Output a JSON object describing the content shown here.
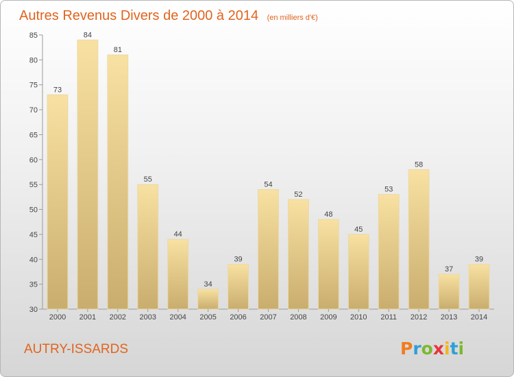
{
  "page": {
    "commune": "AUTRY-ISSARDS",
    "logo_letters": [
      "P",
      "r",
      "o",
      "x",
      "i",
      "t",
      "i"
    ],
    "logo_colors": [
      "#f07d1e",
      "#2f9fd8",
      "#7cb82f",
      "#e8333c",
      "#f3b51c",
      "#2f9fd8",
      "#7cb82f"
    ]
  },
  "chart_data": {
    "type": "bar",
    "title": "Autres Revenus Divers de 2000 à 2014",
    "unit_note": "(en milliers d'€)",
    "categories": [
      "2000",
      "2001",
      "2002",
      "2003",
      "2004",
      "2005",
      "2006",
      "2007",
      "2008",
      "2009",
      "2010",
      "2011",
      "2012",
      "2013",
      "2014"
    ],
    "values": [
      73,
      84,
      81,
      55,
      44,
      34,
      39,
      54,
      52,
      48,
      45,
      53,
      58,
      37,
      39
    ],
    "ylim": [
      30,
      85
    ],
    "yticks": [
      30,
      35,
      40,
      45,
      50,
      55,
      60,
      65,
      70,
      75,
      80,
      85
    ],
    "grid": false,
    "colors": {
      "bar_top": "#f8e1a2",
      "bar_bottom": "#c9ad6e",
      "bar_edge": "#ead9a8",
      "axis": "#9a9a9a"
    }
  }
}
